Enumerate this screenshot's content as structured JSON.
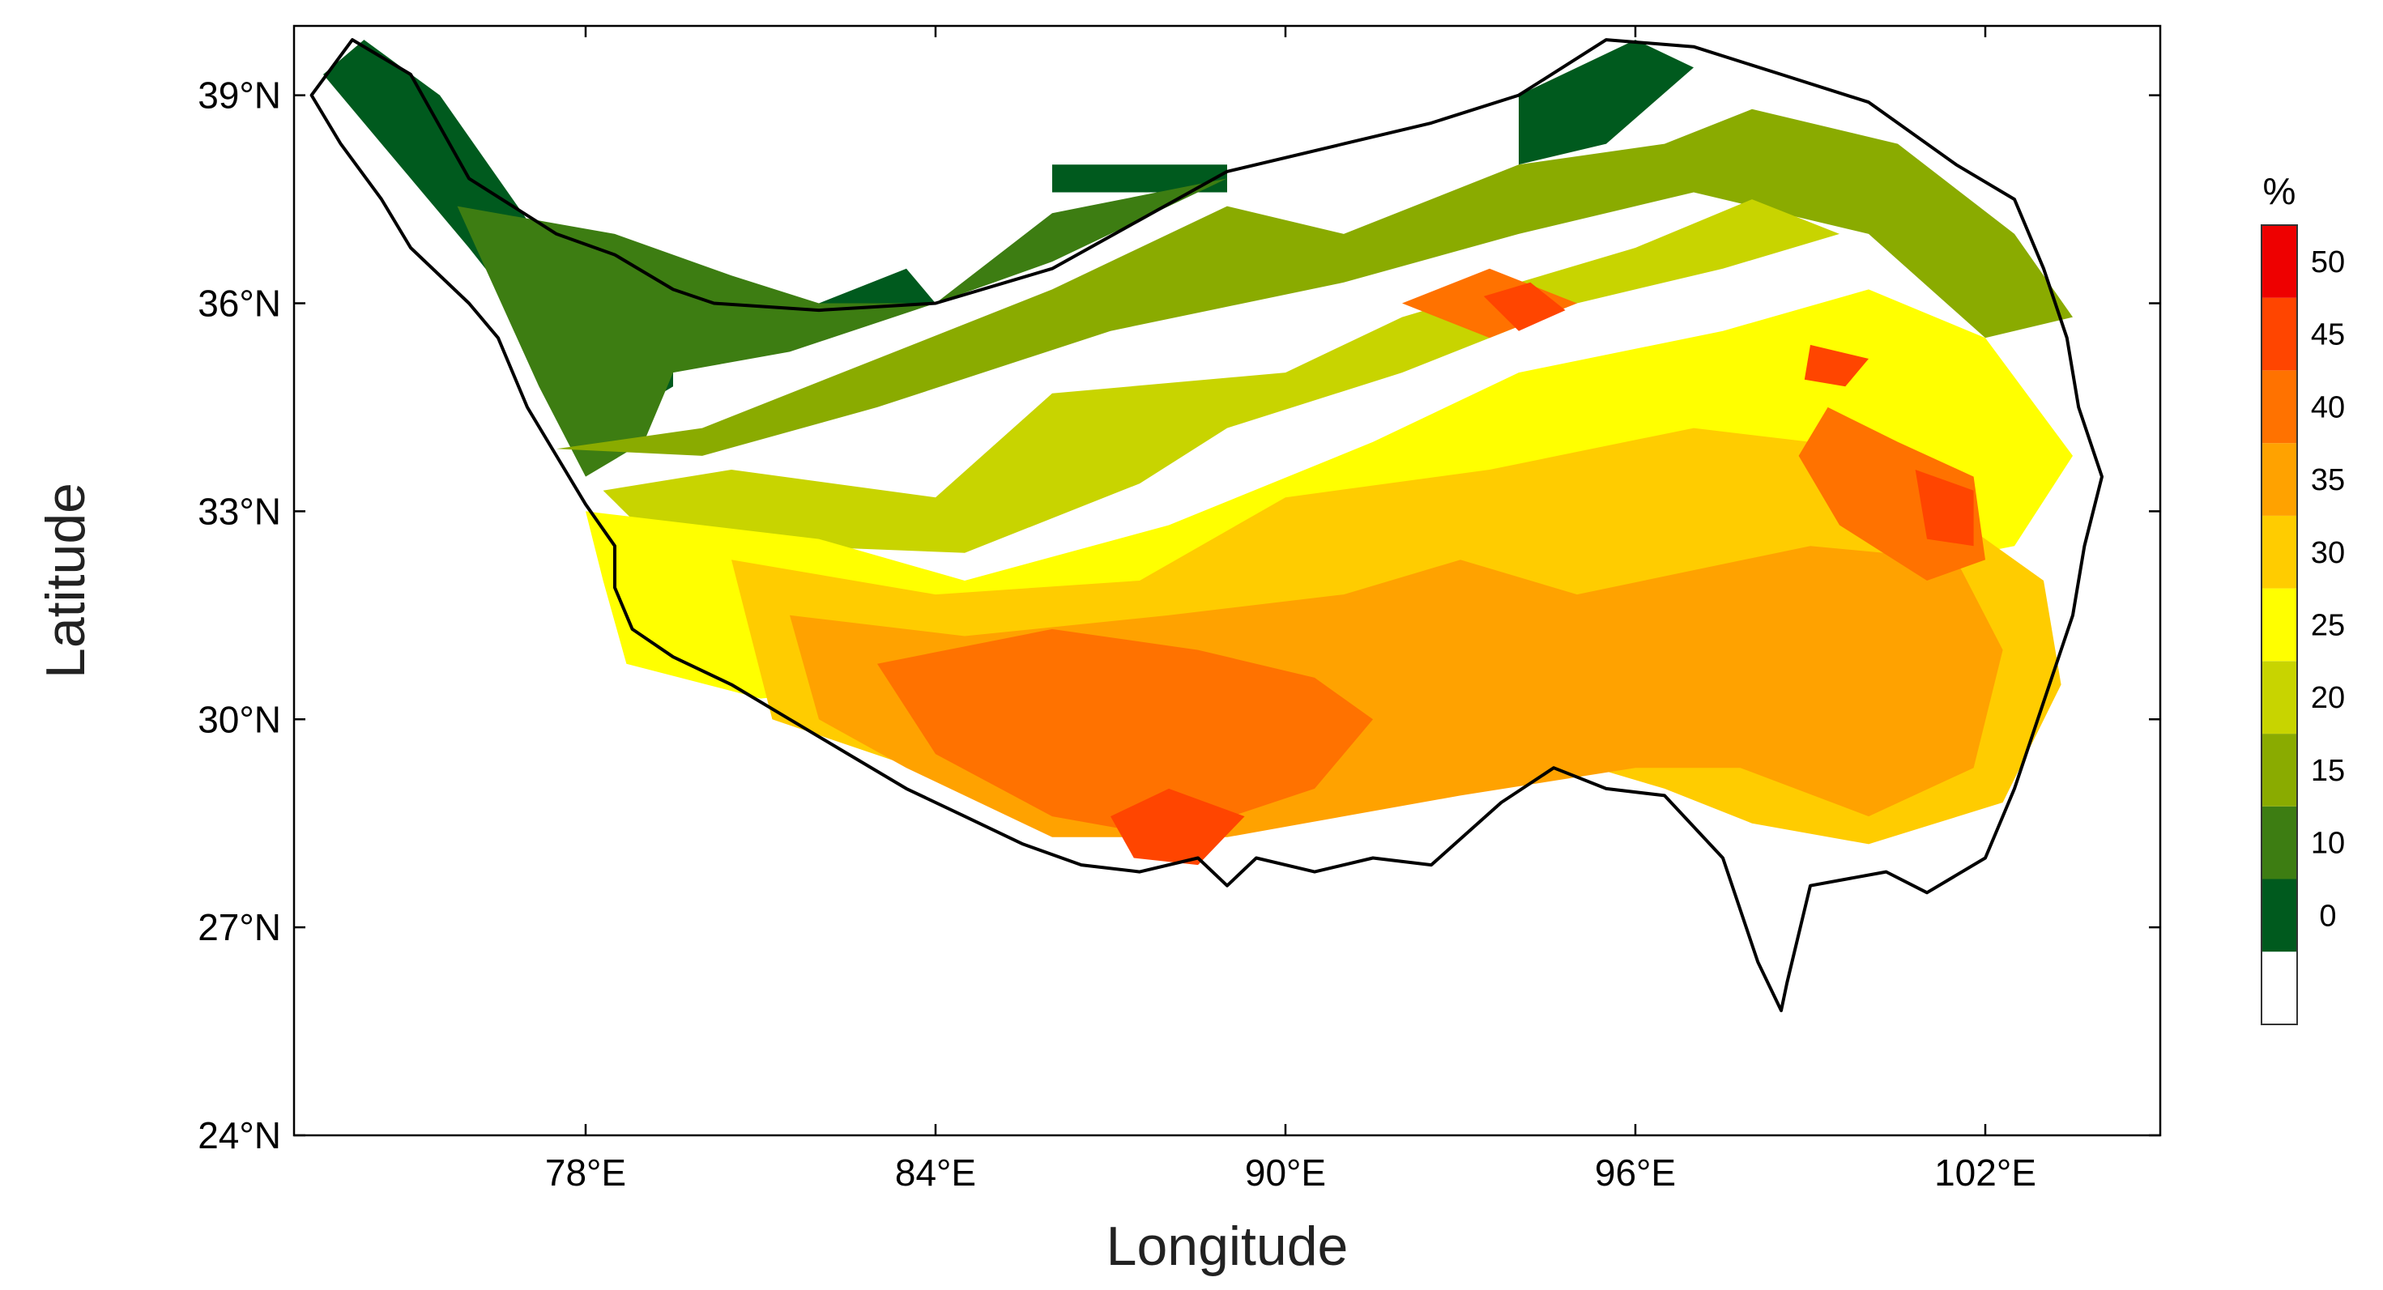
{
  "chart_data": {
    "type": "heatmap",
    "xlabel": "Longitude",
    "ylabel": "Latitude",
    "xlim": [
      73,
      105
    ],
    "ylim": [
      24,
      40
    ],
    "x_ticks": [
      {
        "value": 78,
        "label": "78°E"
      },
      {
        "value": 84,
        "label": "84°E"
      },
      {
        "value": 90,
        "label": "90°E"
      },
      {
        "value": 96,
        "label": "96°E"
      },
      {
        "value": 102,
        "label": "102°E"
      }
    ],
    "y_ticks": [
      {
        "value": 24,
        "label": "24°N"
      },
      {
        "value": 27,
        "label": "27°N"
      },
      {
        "value": 30,
        "label": "30°N"
      },
      {
        "value": 33,
        "label": "33°N"
      },
      {
        "value": 36,
        "label": "36°N"
      },
      {
        "value": 39,
        "label": "39°N"
      }
    ],
    "colorbar": {
      "unit": "%",
      "levels": [
        {
          "from": null,
          "to": 0,
          "color": "#ffffff"
        },
        {
          "from": 0,
          "to": 10,
          "color": "#005a1e"
        },
        {
          "from": 10,
          "to": 15,
          "color": "#3d7d12"
        },
        {
          "from": 15,
          "to": 20,
          "color": "#8aab00"
        },
        {
          "from": 20,
          "to": 25,
          "color": "#c8d400"
        },
        {
          "from": 25,
          "to": 30,
          "color": "#ffff00"
        },
        {
          "from": 30,
          "to": 35,
          "color": "#ffcc00"
        },
        {
          "from": 35,
          "to": 40,
          "color": "#ffa200"
        },
        {
          "from": 40,
          "to": 45,
          "color": "#ff7200"
        },
        {
          "from": 45,
          "to": 50,
          "color": "#ff4500"
        },
        {
          "from": 50,
          "to": null,
          "color": "#ee0000"
        }
      ],
      "tick_labels": [
        "0",
        "10",
        "15",
        "20",
        "25",
        "30",
        "35",
        "40",
        "45",
        "50"
      ]
    },
    "regions": [
      {
        "level": 0,
        "lon_lat": [
          [
            79.3,
            35.9
          ],
          [
            80.0,
            35.9
          ],
          [
            80.0,
            35.0
          ],
          [
            81.5,
            35.0
          ],
          [
            81.5,
            35.9
          ],
          [
            79.3,
            35.9
          ],
          [
            79.3,
            35.0
          ]
        ]
      },
      {
        "level": 1,
        "lon_lat": [
          [
            73.5,
            39.3
          ],
          [
            74.2,
            39.8
          ],
          [
            75.5,
            39.0
          ],
          [
            77.0,
            37.2
          ],
          [
            78.5,
            36.8
          ],
          [
            79.5,
            36.1
          ],
          [
            79.5,
            34.8
          ],
          [
            78.5,
            34.3
          ],
          [
            77.5,
            35.2
          ],
          [
            76.0,
            36.8
          ],
          [
            74.5,
            38.3
          ]
        ]
      },
      {
        "level": 1,
        "lon_lat": [
          [
            82.0,
            36.0
          ],
          [
            83.5,
            36.5
          ],
          [
            84.0,
            36.0
          ],
          [
            82.0,
            35.8
          ]
        ]
      },
      {
        "level": 1,
        "lon_lat": [
          [
            86.0,
            38.0
          ],
          [
            89.0,
            38.0
          ],
          [
            89.0,
            37.6
          ],
          [
            86.0,
            37.6
          ]
        ]
      },
      {
        "level": 1,
        "lon_lat": [
          [
            94.0,
            39.0
          ],
          [
            96.0,
            39.8
          ],
          [
            97.0,
            39.4
          ],
          [
            95.5,
            38.3
          ],
          [
            94.0,
            38.0
          ]
        ]
      },
      {
        "level": 1,
        "lon_lat": [
          [
            101.5,
            37.0
          ],
          [
            102.5,
            36.8
          ],
          [
            102.8,
            36.0
          ],
          [
            102.0,
            36.3
          ]
        ]
      },
      {
        "level": 2,
        "lon_lat": [
          [
            75.8,
            37.4
          ],
          [
            78.5,
            37.0
          ],
          [
            80.5,
            36.4
          ],
          [
            82.0,
            36.0
          ],
          [
            84.0,
            36.0
          ],
          [
            86.0,
            36.6
          ],
          [
            89.0,
            37.8
          ],
          [
            86.0,
            37.3
          ],
          [
            84.0,
            36.0
          ],
          [
            81.5,
            35.3
          ],
          [
            79.5,
            35.0
          ],
          [
            79.0,
            34.0
          ],
          [
            78.0,
            33.5
          ],
          [
            77.2,
            34.8
          ]
        ]
      },
      {
        "level": 3,
        "lon_lat": [
          [
            77.5,
            33.9
          ],
          [
            80.0,
            34.2
          ],
          [
            83.0,
            35.2
          ],
          [
            86.0,
            36.2
          ],
          [
            89.0,
            37.4
          ],
          [
            91.0,
            37.0
          ],
          [
            94.0,
            38.0
          ],
          [
            96.5,
            38.3
          ],
          [
            98.0,
            38.8
          ],
          [
            100.5,
            38.3
          ],
          [
            102.5,
            37.0
          ],
          [
            103.5,
            35.8
          ],
          [
            102.0,
            35.5
          ],
          [
            100.0,
            37.0
          ],
          [
            97.0,
            37.6
          ],
          [
            94.0,
            37.0
          ],
          [
            91.0,
            36.3
          ],
          [
            87.0,
            35.6
          ],
          [
            83.0,
            34.5
          ],
          [
            80.0,
            33.8
          ]
        ]
      },
      {
        "level": 4,
        "lon_lat": [
          [
            78.3,
            33.3
          ],
          [
            80.5,
            33.6
          ],
          [
            84.0,
            33.2
          ],
          [
            86.0,
            34.7
          ],
          [
            90.0,
            35.0
          ],
          [
            92.0,
            35.8
          ],
          [
            96.0,
            36.8
          ],
          [
            98.0,
            37.5
          ],
          [
            99.5,
            37.0
          ],
          [
            97.5,
            36.5
          ],
          [
            95.0,
            36.0
          ],
          [
            92.0,
            35.0
          ],
          [
            89.0,
            34.2
          ],
          [
            87.5,
            33.4
          ],
          [
            84.5,
            32.4
          ],
          [
            81.5,
            32.5
          ],
          [
            79.5,
            32.3
          ]
        ]
      },
      {
        "level": 5,
        "lon_lat": [
          [
            78.0,
            33.0
          ],
          [
            80.0,
            32.8
          ],
          [
            82.0,
            32.6
          ],
          [
            84.5,
            32.0
          ],
          [
            88.0,
            32.8
          ],
          [
            91.5,
            34.0
          ],
          [
            94.0,
            35.0
          ],
          [
            97.5,
            35.6
          ],
          [
            100.0,
            36.2
          ],
          [
            102.0,
            35.5
          ],
          [
            103.5,
            33.8
          ],
          [
            102.5,
            32.5
          ],
          [
            99.5,
            32.0
          ],
          [
            96.0,
            31.6
          ],
          [
            93.0,
            31.0
          ],
          [
            90.0,
            30.8
          ],
          [
            85.0,
            30.6
          ],
          [
            81.0,
            30.3
          ],
          [
            78.7,
            30.8
          ],
          [
            78.3,
            32.0
          ]
        ]
      },
      {
        "level": 6,
        "lon_lat": [
          [
            80.5,
            32.3
          ],
          [
            84.0,
            31.8
          ],
          [
            87.5,
            32.0
          ],
          [
            90.0,
            33.2
          ],
          [
            93.5,
            33.6
          ],
          [
            97.0,
            34.2
          ],
          [
            99.0,
            34.0
          ],
          [
            101.0,
            33.2
          ],
          [
            103.0,
            32.0
          ],
          [
            103.3,
            30.5
          ],
          [
            102.3,
            28.8
          ],
          [
            100.0,
            28.2
          ],
          [
            98.0,
            28.5
          ],
          [
            96.5,
            29.0
          ],
          [
            94.5,
            29.5
          ],
          [
            92.0,
            29.2
          ],
          [
            88.0,
            29.1
          ],
          [
            84.0,
            29.2
          ],
          [
            81.2,
            30.0
          ]
        ]
      },
      {
        "level": 7,
        "lon_lat": [
          [
            81.5,
            31.5
          ],
          [
            84.5,
            31.2
          ],
          [
            88.0,
            31.5
          ],
          [
            91.0,
            31.8
          ],
          [
            93.0,
            32.3
          ],
          [
            95.0,
            31.8
          ],
          [
            99.0,
            32.5
          ],
          [
            101.5,
            32.3
          ],
          [
            102.3,
            31.0
          ],
          [
            101.8,
            29.3
          ],
          [
            100.0,
            28.6
          ],
          [
            97.8,
            29.3
          ],
          [
            96.0,
            29.3
          ],
          [
            93.0,
            28.9
          ],
          [
            89.0,
            28.3
          ],
          [
            86.0,
            28.3
          ],
          [
            83.5,
            29.3
          ],
          [
            82.0,
            30.0
          ]
        ]
      },
      {
        "level": 8,
        "lon_lat": [
          [
            83.0,
            30.8
          ],
          [
            86.0,
            31.3
          ],
          [
            88.5,
            31.0
          ],
          [
            90.5,
            30.6
          ],
          [
            91.5,
            30.0
          ],
          [
            90.5,
            29.0
          ],
          [
            88.0,
            28.3
          ],
          [
            86.0,
            28.6
          ],
          [
            84.0,
            29.5
          ]
        ]
      },
      {
        "level": 8,
        "lon_lat": [
          [
            99.3,
            34.5
          ],
          [
            100.5,
            34.0
          ],
          [
            101.8,
            33.5
          ],
          [
            102.0,
            32.3
          ],
          [
            101.0,
            32.0
          ],
          [
            99.5,
            32.8
          ],
          [
            98.8,
            33.8
          ]
        ]
      },
      {
        "level": 8,
        "lon_lat": [
          [
            92.0,
            36.0
          ],
          [
            93.5,
            36.5
          ],
          [
            95.0,
            36.0
          ],
          [
            93.5,
            35.5
          ]
        ]
      },
      {
        "level": 9,
        "lon_lat": [
          [
            87.0,
            28.6
          ],
          [
            88.0,
            29.0
          ],
          [
            89.3,
            28.6
          ],
          [
            88.5,
            27.9
          ],
          [
            87.4,
            28.0
          ]
        ]
      },
      {
        "level": 9,
        "lon_lat": [
          [
            100.8,
            33.6
          ],
          [
            101.8,
            33.3
          ],
          [
            101.8,
            32.5
          ],
          [
            101.0,
            32.6
          ]
        ]
      },
      {
        "level": 9,
        "lon_lat": [
          [
            93.4,
            36.1
          ],
          [
            94.2,
            36.3
          ],
          [
            94.8,
            35.9
          ],
          [
            94.0,
            35.6
          ]
        ]
      },
      {
        "level": 9,
        "lon_lat": [
          [
            99.0,
            35.4
          ],
          [
            100.0,
            35.2
          ],
          [
            99.6,
            34.8
          ],
          [
            98.9,
            34.9
          ]
        ]
      }
    ],
    "outline": [
      [
        73.3,
        39.0
      ],
      [
        74.0,
        39.8
      ],
      [
        75.0,
        39.3
      ],
      [
        76.0,
        37.8
      ],
      [
        77.5,
        37.0
      ],
      [
        78.5,
        36.7
      ],
      [
        79.5,
        36.2
      ],
      [
        80.2,
        36.0
      ],
      [
        82.0,
        35.9
      ],
      [
        84.0,
        36.0
      ],
      [
        86.0,
        36.5
      ],
      [
        87.5,
        37.2
      ],
      [
        89.0,
        37.9
      ],
      [
        91.0,
        38.3
      ],
      [
        92.5,
        38.6
      ],
      [
        94.0,
        39.0
      ],
      [
        95.5,
        39.8
      ],
      [
        97.0,
        39.7
      ],
      [
        98.5,
        39.3
      ],
      [
        100.0,
        38.9
      ],
      [
        101.5,
        38.0
      ],
      [
        102.5,
        37.5
      ],
      [
        103.0,
        36.5
      ],
      [
        103.4,
        35.5
      ],
      [
        103.6,
        34.5
      ],
      [
        104.0,
        33.5
      ],
      [
        103.7,
        32.5
      ],
      [
        103.5,
        31.5
      ],
      [
        103.1,
        30.5
      ],
      [
        102.5,
        29.0
      ],
      [
        102.0,
        28.0
      ],
      [
        101.0,
        27.5
      ],
      [
        100.3,
        27.8
      ],
      [
        99.0,
        27.6
      ],
      [
        98.6,
        26.2
      ],
      [
        98.5,
        25.8
      ],
      [
        98.1,
        26.5
      ],
      [
        97.5,
        28.0
      ],
      [
        96.5,
        28.9
      ],
      [
        95.5,
        29.0
      ],
      [
        94.6,
        29.3
      ],
      [
        93.7,
        28.8
      ],
      [
        92.5,
        27.9
      ],
      [
        91.5,
        28.0
      ],
      [
        90.5,
        27.8
      ],
      [
        89.5,
        28.0
      ],
      [
        89.0,
        27.6
      ],
      [
        88.5,
        28.0
      ],
      [
        87.5,
        27.8
      ],
      [
        86.5,
        27.9
      ],
      [
        85.5,
        28.2
      ],
      [
        84.5,
        28.6
      ],
      [
        83.5,
        29.0
      ],
      [
        82.5,
        29.5
      ],
      [
        81.5,
        30.0
      ],
      [
        80.5,
        30.5
      ],
      [
        79.5,
        30.9
      ],
      [
        78.8,
        31.3
      ],
      [
        78.5,
        31.9
      ],
      [
        78.5,
        32.5
      ],
      [
        78.0,
        33.1
      ],
      [
        77.5,
        33.8
      ],
      [
        77.0,
        34.5
      ],
      [
        76.5,
        35.5
      ],
      [
        76.0,
        36.0
      ],
      [
        75.0,
        36.8
      ],
      [
        74.5,
        37.5
      ],
      [
        73.8,
        38.3
      ]
    ]
  }
}
